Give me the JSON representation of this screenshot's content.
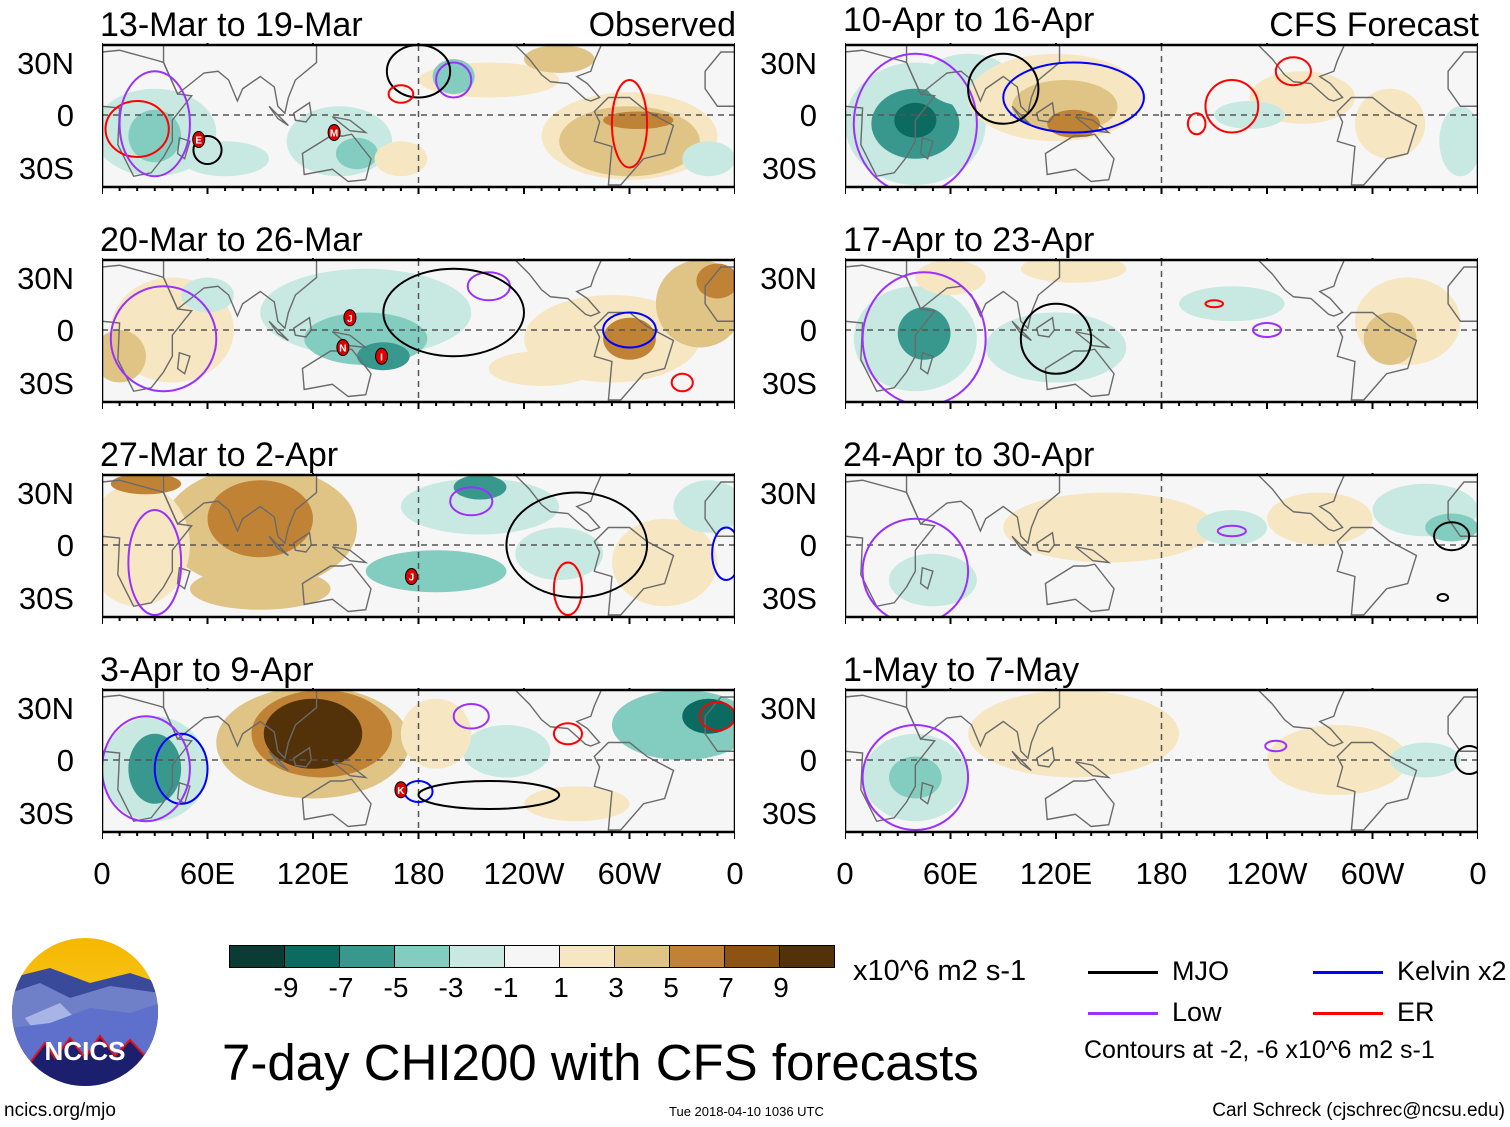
{
  "figure": {
    "title": "7-day CHI200 with CFS forecasts",
    "units": "x10^6 m2 s-1",
    "contour_note": "Contours at -2, -6 x10^6 m2 s-1",
    "website": "ncics.org/mjo",
    "timestamp": "Tue 2018-04-10 1036 UTC",
    "author": "Carl Schreck (cjschrec@ncsu.edu)",
    "logo_text": "NCICS"
  },
  "columns": {
    "observed_label": "Observed",
    "forecast_label": "CFS Forecast"
  },
  "lat_labels": [
    "30N",
    "0",
    "30S"
  ],
  "lon_labels": [
    "0",
    "60E",
    "120E",
    "180",
    "120W",
    "60W",
    "0"
  ],
  "observed_panels": [
    {
      "title": "13-Mar to 19-Mar",
      "storms": [
        {
          "label": "E",
          "lon": 55,
          "lat": -14
        },
        {
          "label": "M",
          "lon": 132,
          "lat": -10
        }
      ]
    },
    {
      "title": "20-Mar to 26-Mar",
      "storms": [
        {
          "label": "J",
          "lon": 141,
          "lat": 7
        },
        {
          "label": "N",
          "lon": 137,
          "lat": -10
        },
        {
          "label": "I",
          "lon": 159,
          "lat": -15
        }
      ]
    },
    {
      "title": "27-Mar to 2-Apr",
      "storms": [
        {
          "label": "J",
          "lon": 176,
          "lat": -18
        }
      ]
    },
    {
      "title": "3-Apr to 9-Apr",
      "storms": [
        {
          "label": "K",
          "lon": 170,
          "lat": -17
        }
      ]
    }
  ],
  "forecast_panels": [
    {
      "title": "10-Apr to 16-Apr"
    },
    {
      "title": "17-Apr to 23-Apr"
    },
    {
      "title": "24-Apr to 30-Apr"
    },
    {
      "title": "1-May to 7-May"
    }
  ],
  "colorbar": {
    "colors": [
      "#0a3b34",
      "#0b6b61",
      "#39988d",
      "#82cdc0",
      "#c7e9e1",
      "#f6f6f6",
      "#f6e7c2",
      "#e0c486",
      "#c08336",
      "#8d5312",
      "#53320a"
    ],
    "labels": [
      "-9",
      "-7",
      "-5",
      "-3",
      "-1",
      "1",
      "3",
      "5",
      "7",
      "9"
    ]
  },
  "legend": [
    {
      "label": "MJO",
      "color": "#000000"
    },
    {
      "label": "Kelvin x2",
      "color": "#0000ff"
    },
    {
      "label": "Low",
      "color": "#9b30ff"
    },
    {
      "label": "ER",
      "color": "#ff0000"
    }
  ]
}
